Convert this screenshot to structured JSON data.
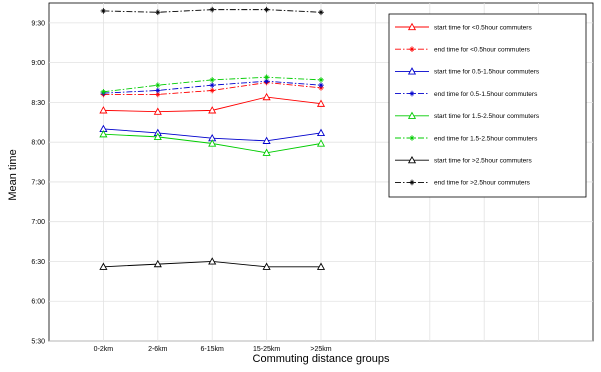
{
  "chart_data": {
    "type": "line",
    "title": "",
    "xlabel": "Commuting distance groups",
    "ylabel": "Mean time",
    "categories": [
      "0-2km",
      "2-6km",
      "6-15km",
      "15-25km",
      ">25km"
    ],
    "y_ticks": [
      "5:30",
      "6:00",
      "6:30",
      "7:00",
      "7:30",
      "8:00",
      "8:30",
      "9:00",
      "9:30"
    ],
    "ylim_minutes": [
      330,
      585
    ],
    "grid": true,
    "legend_position": "top-right",
    "series": [
      {
        "name": "start time for <0.5hour commuters",
        "color": "#ff0000",
        "style": "solid",
        "marker": "triangle",
        "values": [
          504,
          503,
          504,
          514,
          509
        ]
      },
      {
        "name": "end time for <0.5hour commuters",
        "color": "#ff0000",
        "style": "dashdot",
        "marker": "star",
        "values": [
          516,
          516,
          519,
          525,
          521
        ]
      },
      {
        "name": "start time for 0.5-1.5hour commuters",
        "color": "#0000cc",
        "style": "solid",
        "marker": "triangle",
        "values": [
          490,
          487,
          483,
          481,
          487
        ]
      },
      {
        "name": "end time for 0.5-1.5hour commuters",
        "color": "#0000cc",
        "style": "dashdot",
        "marker": "star",
        "values": [
          517,
          519,
          523,
          526,
          523
        ]
      },
      {
        "name": "start time for 1.5-2.5hour commuters",
        "color": "#00cc00",
        "style": "solid",
        "marker": "triangle",
        "values": [
          486,
          484,
          479,
          472,
          479
        ]
      },
      {
        "name": "end time for 1.5-2.5hour commuters",
        "color": "#00cc00",
        "style": "dashdot",
        "marker": "star",
        "values": [
          518,
          523,
          527,
          529,
          527
        ]
      },
      {
        "name": "start time for >2.5hour commuters",
        "color": "#000000",
        "style": "solid",
        "marker": "triangle",
        "values": [
          386,
          388,
          390,
          386,
          386
        ]
      },
      {
        "name": "end time for >2.5hour commuters",
        "color": "#000000",
        "style": "dashdot",
        "marker": "star",
        "values": [
          579,
          578,
          580,
          580,
          578
        ]
      }
    ]
  }
}
